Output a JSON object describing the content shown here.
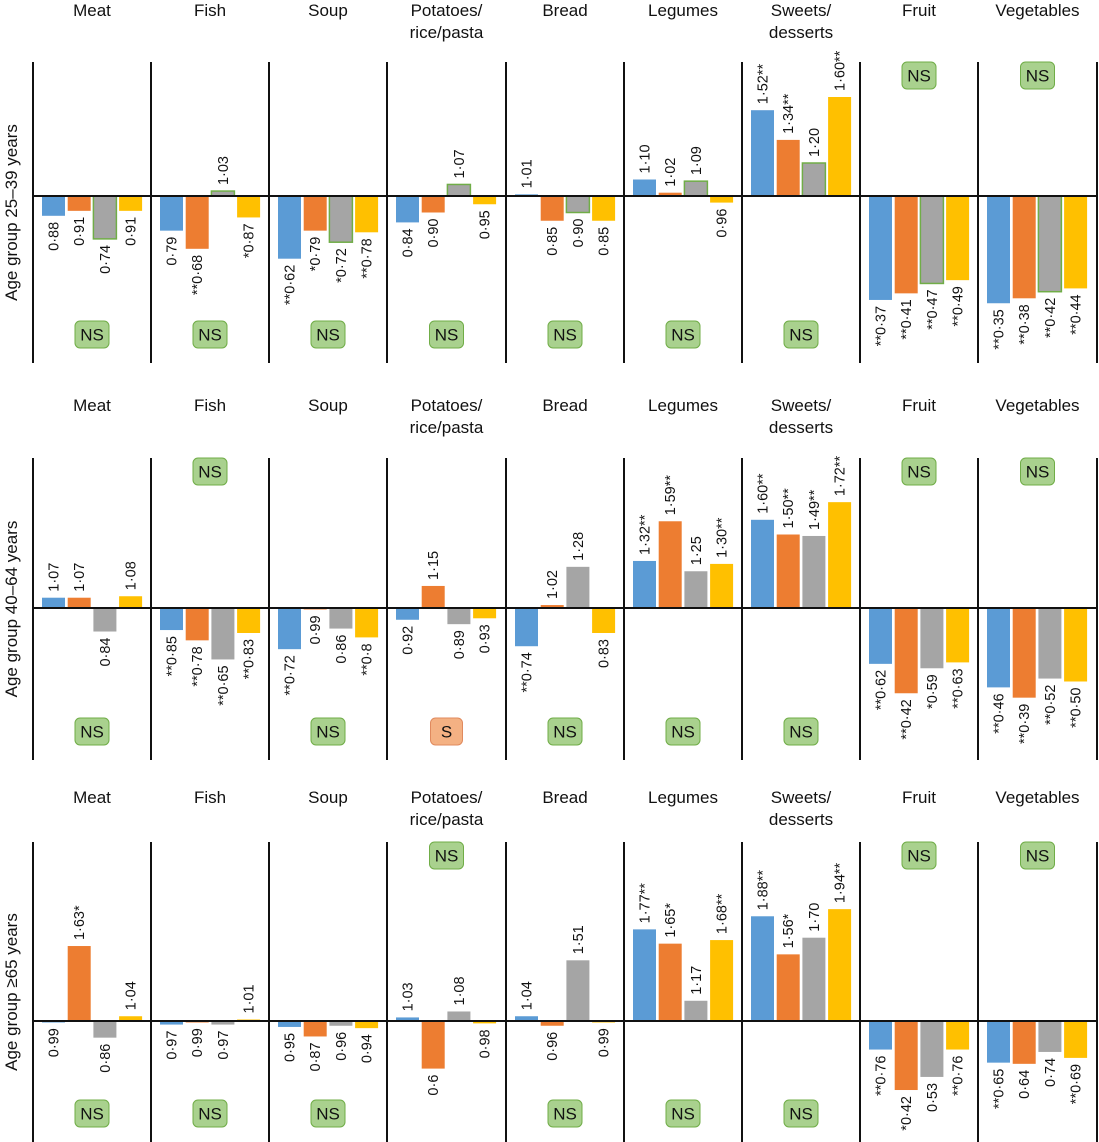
{
  "chart_data": {
    "type": "bar",
    "title": "",
    "baseline": 1.0,
    "colors": {
      "series": [
        "#5B9BD5",
        "#ED7D31",
        "#A5A5A5",
        "#FFC000"
      ],
      "highlight_outline": "#70AD47",
      "badge_ns_fill": "#A9D18E",
      "badge_ns_border": "#70AD47",
      "badge_s_fill": "#F4B183",
      "badge_s_border": "#E08A5E"
    },
    "categories": [
      [
        "Meat"
      ],
      [
        "Fish"
      ],
      [
        "Soup"
      ],
      [
        "Potatoes/",
        "rice/pasta"
      ],
      [
        "Bread"
      ],
      [
        "Legumes"
      ],
      [
        "Sweets/",
        "desserts"
      ],
      [
        "Fruit"
      ],
      [
        "Vegetables"
      ]
    ],
    "rows": [
      {
        "label": "Age group 25–39 years",
        "highlight_series": 2,
        "panels": [
          {
            "values": [
              0.88,
              0.91,
              0.74,
              0.91
            ],
            "labels": [
              "0·88",
              "0·91",
              "0·74",
              "0·91"
            ],
            "badge": "NS",
            "badge_pos": "bottom"
          },
          {
            "values": [
              0.79,
              0.68,
              1.03,
              0.87
            ],
            "labels": [
              "0·79",
              "**0·68",
              "1·03",
              "*0·87"
            ],
            "badge": "NS",
            "badge_pos": "bottom"
          },
          {
            "values": [
              0.62,
              0.79,
              0.72,
              0.78
            ],
            "labels": [
              "**0·62",
              "*0·79",
              "*0·72",
              "**0·78"
            ],
            "badge": "NS",
            "badge_pos": "bottom"
          },
          {
            "values": [
              0.84,
              0.9,
              1.07,
              0.95
            ],
            "labels": [
              "0·84",
              "0·90",
              "1·07",
              "0·95"
            ],
            "badge": "NS",
            "badge_pos": "bottom"
          },
          {
            "values": [
              1.01,
              0.85,
              0.9,
              0.85
            ],
            "labels": [
              "1·01",
              "0·85",
              "0·90",
              "0·85"
            ],
            "badge": "NS",
            "badge_pos": "bottom"
          },
          {
            "values": [
              1.1,
              1.02,
              1.09,
              0.96
            ],
            "labels": [
              "1·10",
              "1·02",
              "1·09",
              "0·96"
            ],
            "badge": "NS",
            "badge_pos": "bottom"
          },
          {
            "values": [
              1.52,
              1.34,
              1.2,
              1.6
            ],
            "labels": [
              "1·52**",
              "1·34**",
              "1·20",
              "1·60**"
            ],
            "badge": "NS",
            "badge_pos": "bottom"
          },
          {
            "values": [
              0.37,
              0.41,
              0.47,
              0.49
            ],
            "labels": [
              "**0·37",
              "**0·41",
              "**0·47",
              "**0·49"
            ],
            "badge": "NS",
            "badge_pos": "top"
          },
          {
            "values": [
              0.35,
              0.38,
              0.42,
              0.44
            ],
            "labels": [
              "**0·35",
              "**0·38",
              "**0·42",
              "**0·44"
            ],
            "badge": "NS",
            "badge_pos": "top"
          }
        ]
      },
      {
        "label": "Age group 40–64 years",
        "highlight_series": null,
        "panels": [
          {
            "values": [
              1.07,
              1.07,
              0.84,
              1.08
            ],
            "labels": [
              "1·07",
              "1·07",
              "0·84",
              "1·08"
            ],
            "badge": "NS",
            "badge_pos": "bottom"
          },
          {
            "values": [
              0.85,
              0.78,
              0.65,
              0.83
            ],
            "labels": [
              "**0·85",
              "**0·78",
              "**0·65",
              "**0·83"
            ],
            "badge": "NS",
            "badge_pos": "top"
          },
          {
            "values": [
              0.72,
              0.99,
              0.86,
              0.8
            ],
            "labels": [
              "**0·72",
              "0·99",
              "0·86",
              "**0·8"
            ],
            "badge": "NS",
            "badge_pos": "bottom"
          },
          {
            "values": [
              0.92,
              1.15,
              0.89,
              0.93
            ],
            "labels": [
              "0·92",
              "1·15",
              "0·89",
              "0·93"
            ],
            "badge": "S",
            "badge_pos": "bottom"
          },
          {
            "values": [
              0.74,
              1.02,
              1.28,
              0.83
            ],
            "labels": [
              "**0·74",
              "1·02",
              "1·28",
              "0·83"
            ],
            "badge": "NS",
            "badge_pos": "bottom"
          },
          {
            "values": [
              1.32,
              1.59,
              1.25,
              1.3
            ],
            "labels": [
              "1·32**",
              "1·59**",
              "1·25",
              "1·30**"
            ],
            "badge": "NS",
            "badge_pos": "bottom"
          },
          {
            "values": [
              1.6,
              1.5,
              1.49,
              1.72
            ],
            "labels": [
              "1·60**",
              "1·50**",
              "1·49**",
              "1·72**"
            ],
            "badge": "NS",
            "badge_pos": "bottom"
          },
          {
            "values": [
              0.62,
              0.42,
              0.59,
              0.63
            ],
            "labels": [
              "**0·62",
              "**0·42",
              "*0·59",
              "**0·63"
            ],
            "badge": "NS",
            "badge_pos": "top"
          },
          {
            "values": [
              0.46,
              0.39,
              0.52,
              0.5
            ],
            "labels": [
              "**0·46",
              "**0·39",
              "**0·52",
              "**0·50"
            ],
            "badge": "NS",
            "badge_pos": "top"
          }
        ]
      },
      {
        "label": "Age group ≥65 years",
        "highlight_series": null,
        "panels": [
          {
            "values": [
              0.99,
              1.63,
              0.86,
              1.04
            ],
            "labels": [
              "0·99",
              "1·63*",
              "0·86",
              "1·04"
            ],
            "badge": "NS",
            "badge_pos": "bottom"
          },
          {
            "values": [
              0.97,
              0.99,
              0.97,
              1.01
            ],
            "labels": [
              "0·97",
              "0·99",
              "0·97",
              "1·01"
            ],
            "badge": "NS",
            "badge_pos": "bottom"
          },
          {
            "values": [
              0.95,
              0.87,
              0.96,
              0.94
            ],
            "labels": [
              "0·95",
              "0·87",
              "0·96",
              "0·94"
            ],
            "badge": "NS",
            "badge_pos": "bottom"
          },
          {
            "values": [
              1.03,
              0.6,
              1.08,
              0.98
            ],
            "labels": [
              "1·03",
              "0·6",
              "1·08",
              "0·98"
            ],
            "badge": "NS",
            "badge_pos": "top"
          },
          {
            "values": [
              1.04,
              0.96,
              1.51,
              0.99
            ],
            "labels": [
              "1·04",
              "0·96",
              "1·51",
              "0·99"
            ],
            "badge": "NS",
            "badge_pos": "bottom"
          },
          {
            "values": [
              1.77,
              1.65,
              1.17,
              1.68
            ],
            "labels": [
              "1·77**",
              "1·65*",
              "1·17",
              "1·68**"
            ],
            "badge": "NS",
            "badge_pos": "bottom"
          },
          {
            "values": [
              1.88,
              1.56,
              1.7,
              1.94
            ],
            "labels": [
              "1·88**",
              "1·56*",
              "1·70",
              "1·94**"
            ],
            "badge": "NS",
            "badge_pos": "bottom"
          },
          {
            "values": [
              0.76,
              0.42,
              0.53,
              0.76
            ],
            "labels": [
              "**0·76",
              "*0·42",
              "0·53",
              "**0·76"
            ],
            "badge": "NS",
            "badge_pos": "top"
          },
          {
            "values": [
              0.65,
              0.64,
              0.74,
              0.69
            ],
            "labels": [
              "**0·65",
              "0·64",
              "0·74",
              "**0·69"
            ],
            "badge": "NS",
            "badge_pos": "top"
          }
        ]
      }
    ],
    "xlabel": "",
    "ylabel": "",
    "grid": false,
    "legend": "none"
  }
}
